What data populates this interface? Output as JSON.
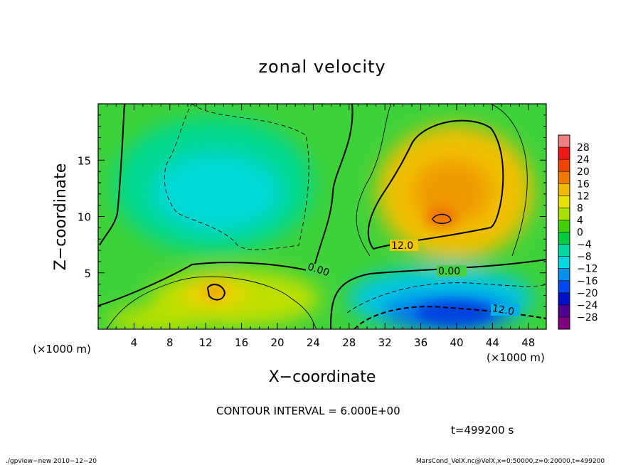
{
  "chart_data": {
    "type": "heatmap",
    "title": "zonal velocity",
    "xlabel": "X−coordinate",
    "ylabel": "Z−coordinate",
    "xunit": "(×1000 m)",
    "xunit_left": "(×1000 m)",
    "xlim": [
      0,
      50
    ],
    "ylim": [
      0,
      20
    ],
    "x_ticks": [
      4,
      8,
      12,
      16,
      20,
      24,
      28,
      32,
      36,
      40,
      44,
      48
    ],
    "y_ticks": [
      5,
      10,
      15
    ],
    "contour_interval_text": "CONTOUR INTERVAL = 6.000E+00",
    "time_text": "t=499200 s",
    "footer_left": "./gpview−new   2010−12−20",
    "footer_right": "MarsCond_VelX.nc@VelX,x=0:50000,z=0:20000,t=499200",
    "contour_labels": [
      "12.0",
      "0.00",
      "0.00",
      "12.0"
    ],
    "colorbar": {
      "levels": [
        28,
        24,
        20,
        16,
        12,
        8,
        4,
        0,
        "−4",
        "−8",
        "−12",
        "−16",
        "−20",
        "−24",
        "−28"
      ],
      "colors": [
        "#f08080",
        "#f01818",
        "#f04400",
        "#f07a00",
        "#f0b800",
        "#e8e000",
        "#a8e000",
        "#40d000",
        "#00cc40",
        "#00d8a0",
        "#00d8e0",
        "#0090f0",
        "#0048f0",
        "#0010c8",
        "#500090",
        "#800080"
      ]
    },
    "field_features": [
      {
        "x": 18,
        "z": 13,
        "u": -10
      },
      {
        "x": 38,
        "z": 12,
        "u": 18
      },
      {
        "x": 40,
        "z": 1,
        "u": -20
      },
      {
        "x": 13,
        "z": 3,
        "u": 12
      },
      {
        "x": 20,
        "z": 3,
        "u": 8
      }
    ]
  }
}
